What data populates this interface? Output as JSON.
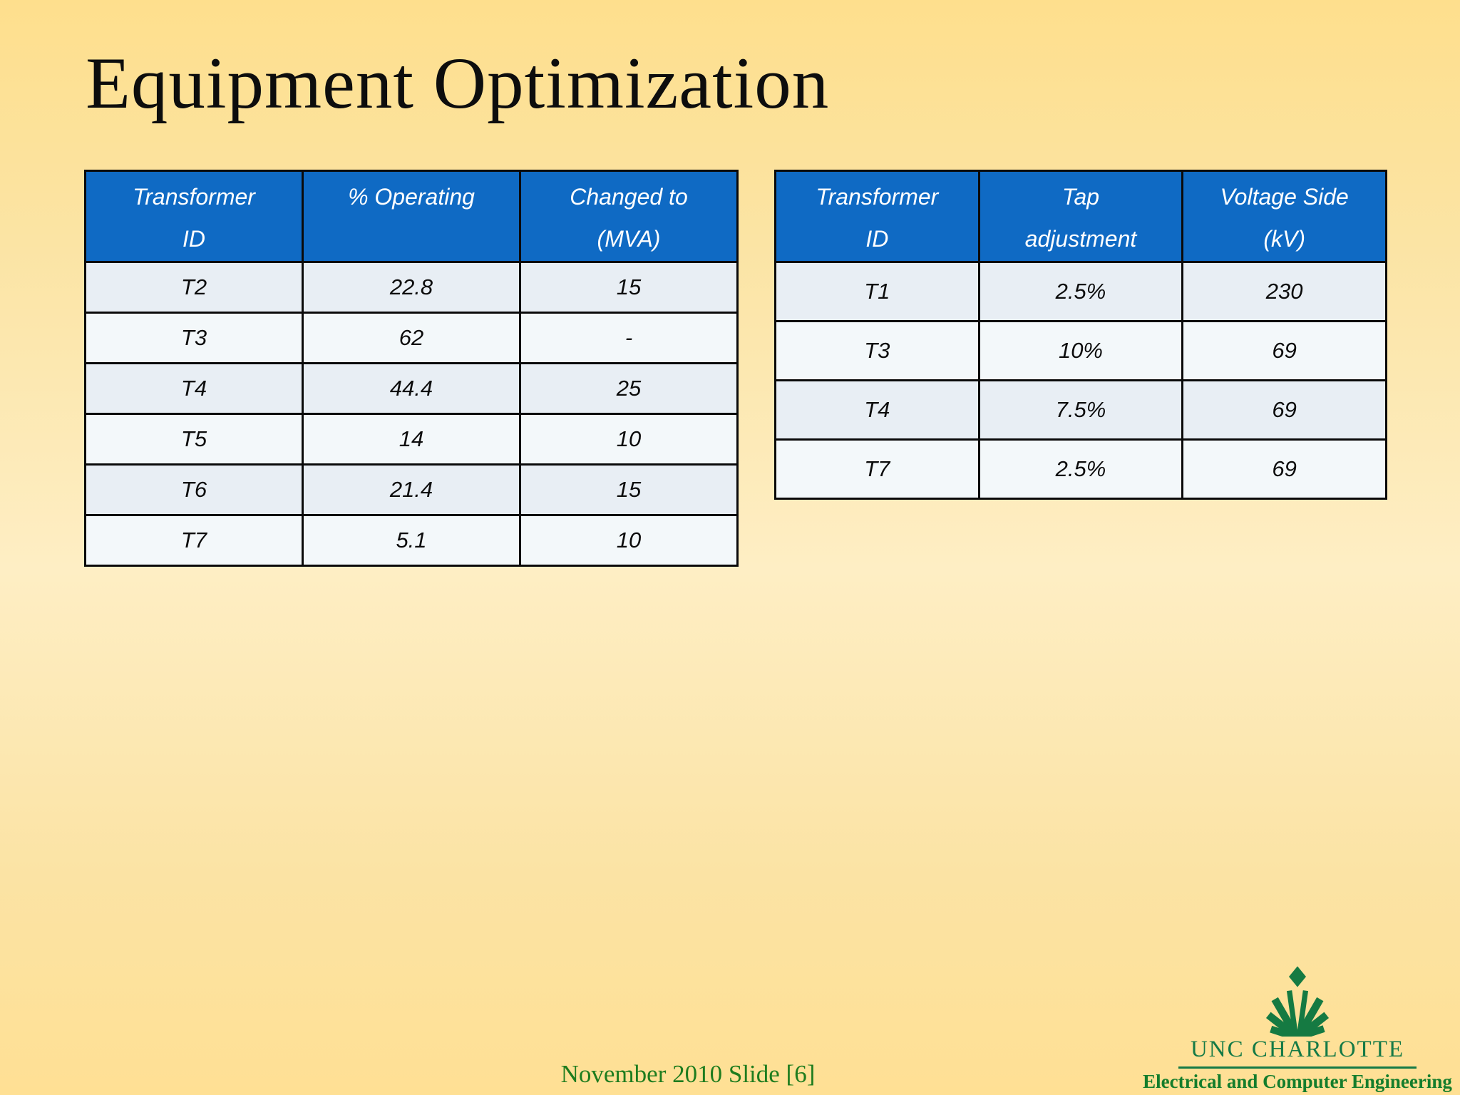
{
  "slide": {
    "title": "Equipment Optimization",
    "footer": "November 2010 Slide [6]"
  },
  "tables": {
    "left": {
      "name": "transformer-loading-table",
      "columns": [
        [
          "Transformer",
          "ID"
        ],
        [
          "% Operating"
        ],
        [
          "Changed to",
          "(MVA)"
        ]
      ],
      "rows": [
        [
          "T2",
          "22.8",
          "15"
        ],
        [
          "T3",
          "62",
          "-"
        ],
        [
          "T4",
          "44.4",
          "25"
        ],
        [
          "T5",
          "14",
          "10"
        ],
        [
          "T6",
          "21.4",
          "15"
        ],
        [
          "T7",
          "5.1",
          "10"
        ]
      ]
    },
    "right": {
      "name": "tap-adjustment-table",
      "columns": [
        [
          "Transformer",
          "ID"
        ],
        [
          "Tap",
          "adjustment"
        ],
        [
          "Voltage Side",
          "(kV)"
        ]
      ],
      "rows": [
        [
          "T1",
          "2.5%",
          "230"
        ],
        [
          "T3",
          "10%",
          "69"
        ],
        [
          "T4",
          "7.5%",
          "69"
        ],
        [
          "T7",
          "2.5%",
          "69"
        ]
      ]
    }
  },
  "logo": {
    "org": "UNC CHARLOTTE",
    "dept": "Electrical and Computer Engineering",
    "crown_icon": "unc-charlotte-crown-icon"
  },
  "colors": {
    "header_blue": "#0f6ac4",
    "row_odd": "#e8eef4",
    "row_even": "#f3f8fa",
    "table_border": "#0a0a0a",
    "footer_green": "#1e7c1e",
    "logo_green": "#157a46",
    "dept_green": "#147d2c",
    "background_top": "#fedf8d",
    "background_mid": "#feeec4",
    "background_bottom": "#ffe094"
  }
}
